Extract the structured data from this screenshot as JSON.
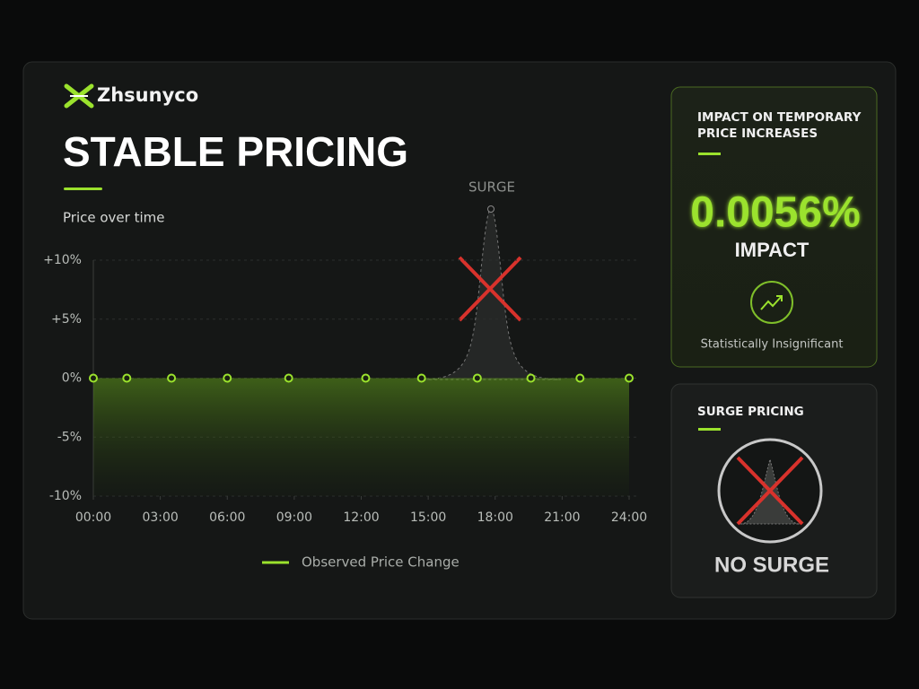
{
  "brand": "Zhsunyco",
  "chart_data": {
    "type": "line",
    "title": "STABLE PRICING",
    "subtitle": "Price over time",
    "annotation": "SURGE",
    "x": [
      0,
      1.5,
      3.5,
      6,
      8.75,
      12.2,
      14.7,
      17.2,
      19.6,
      21.8,
      24
    ],
    "series": [
      {
        "name": "Observed Price Change",
        "color": "#9be22d",
        "values": [
          0,
          0,
          0,
          0,
          0,
          0,
          0,
          0,
          0,
          0,
          0
        ]
      }
    ],
    "xlim": [
      0,
      24
    ],
    "xticks": [
      {
        "value": 0,
        "label": "00:00"
      },
      {
        "value": 3,
        "label": "03:00"
      },
      {
        "value": 6,
        "label": "06:00"
      },
      {
        "value": 9,
        "label": "09:00"
      },
      {
        "value": 12,
        "label": "12:00"
      },
      {
        "value": 15,
        "label": "15:00"
      },
      {
        "value": 18,
        "label": "18:00"
      },
      {
        "value": 21,
        "label": "21:00"
      },
      {
        "value": 24,
        "label": "24:00"
      }
    ],
    "ylim": [
      -10,
      10
    ],
    "yticks": [
      {
        "value": 10,
        "label": "+10%"
      },
      {
        "value": 5,
        "label": "+5%"
      },
      {
        "value": 0,
        "label": "0%"
      },
      {
        "value": -5,
        "label": "-5%"
      },
      {
        "value": -10,
        "label": "-10%"
      }
    ],
    "grid": true,
    "legend": "bottom"
  },
  "impact_panel": {
    "title_lines": [
      "IMPACT ON TEMPORARY",
      "PRICE INCREASES"
    ],
    "value": "0.0056%",
    "value_caption": "IMPACT",
    "note": "Statistically Insignificant"
  },
  "surge_panel": {
    "title": "SURGE PRICING",
    "status": "NO SURGE"
  }
}
